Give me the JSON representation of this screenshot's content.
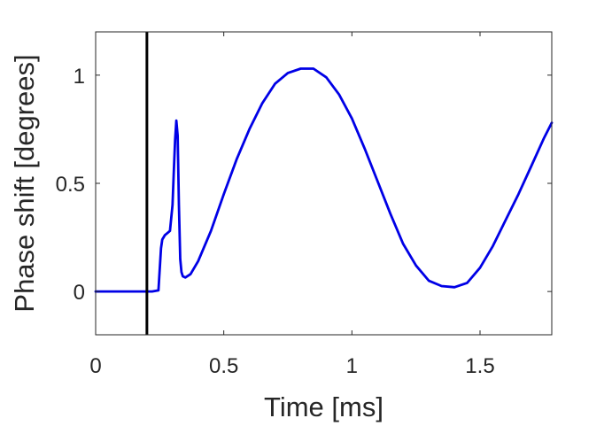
{
  "chart_data": {
    "type": "line",
    "title": "",
    "xlabel": "Time [ms]",
    "ylabel": "Phase shift [degrees]",
    "xlim": [
      0,
      1.78
    ],
    "ylim": [
      -0.2,
      1.2
    ],
    "x_ticks": [
      0,
      0.5,
      1,
      1.5
    ],
    "x_tick_labels": [
      "0",
      "0.5",
      "1",
      "1.5"
    ],
    "y_ticks": [
      0,
      0.5,
      1
    ],
    "y_tick_labels": [
      "0",
      "0.5",
      "1"
    ],
    "grid": false,
    "box": true,
    "vertical_marker": {
      "x": 0.2,
      "color": "#000000"
    },
    "series": [
      {
        "color": "#0000e6",
        "x": [
          0,
          0.05,
          0.1,
          0.15,
          0.2,
          0.22,
          0.245,
          0.25,
          0.255,
          0.26,
          0.27,
          0.28,
          0.29,
          0.3,
          0.305,
          0.31,
          0.315,
          0.32,
          0.325,
          0.33,
          0.335,
          0.34,
          0.35,
          0.37,
          0.4,
          0.45,
          0.5,
          0.55,
          0.6,
          0.65,
          0.7,
          0.75,
          0.8,
          0.85,
          0.9,
          0.95,
          1.0,
          1.05,
          1.1,
          1.15,
          1.2,
          1.25,
          1.3,
          1.35,
          1.4,
          1.45,
          1.5,
          1.55,
          1.6,
          1.65,
          1.7,
          1.75,
          1.78
        ],
        "y": [
          0.0,
          0.0,
          0.0,
          0.0,
          0.0,
          0.0,
          0.005,
          0.1,
          0.2,
          0.24,
          0.26,
          0.27,
          0.28,
          0.4,
          0.55,
          0.7,
          0.79,
          0.72,
          0.4,
          0.15,
          0.09,
          0.07,
          0.065,
          0.08,
          0.14,
          0.28,
          0.45,
          0.61,
          0.75,
          0.87,
          0.96,
          1.01,
          1.03,
          1.03,
          0.99,
          0.91,
          0.8,
          0.66,
          0.51,
          0.36,
          0.22,
          0.12,
          0.05,
          0.025,
          0.02,
          0.04,
          0.11,
          0.21,
          0.33,
          0.45,
          0.58,
          0.71,
          0.78
        ]
      }
    ]
  }
}
